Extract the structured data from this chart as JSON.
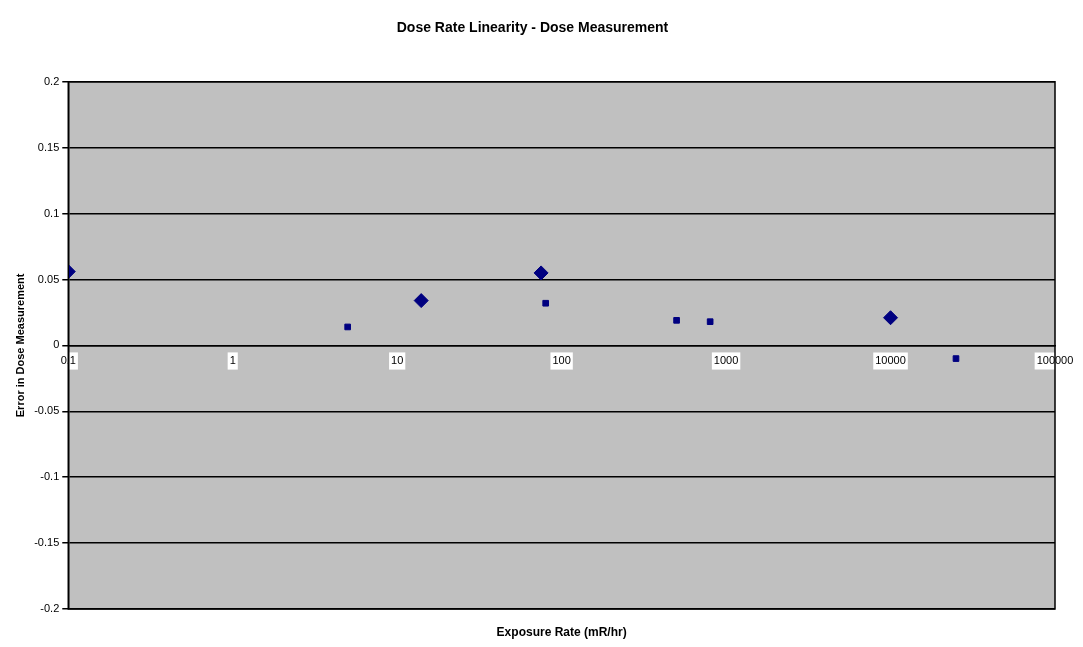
{
  "chart_data": {
    "type": "scatter",
    "title": "Dose Rate Linearity - Dose Measurement",
    "xlabel": "Exposure Rate (mR/hr)",
    "ylabel": "Error in Dose Measurement",
    "log": "x",
    "xlim": [
      0.1,
      100000
    ],
    "xticks": [
      0.1,
      1,
      10,
      100,
      1000,
      10000,
      100000
    ],
    "ylim": [
      -0.2,
      0.2
    ],
    "yticks": [
      -0.2,
      -0.15,
      -0.1,
      -0.05,
      0,
      0.05,
      0.1,
      0.15,
      0.2
    ],
    "grid": "y",
    "legend": false,
    "series": [
      {
        "color": "#000080",
        "marker": "diamond",
        "x": [
          0.1,
          14,
          75,
          10000
        ],
        "values": [
          0.056,
          0.034,
          0.055,
          0.021
        ]
      },
      {
        "color": "#000080",
        "marker": "square",
        "x": [
          5,
          80,
          500,
          800,
          25000
        ],
        "values": [
          0.014,
          0.032,
          0.019,
          0.018,
          -0.01
        ]
      }
    ]
  }
}
